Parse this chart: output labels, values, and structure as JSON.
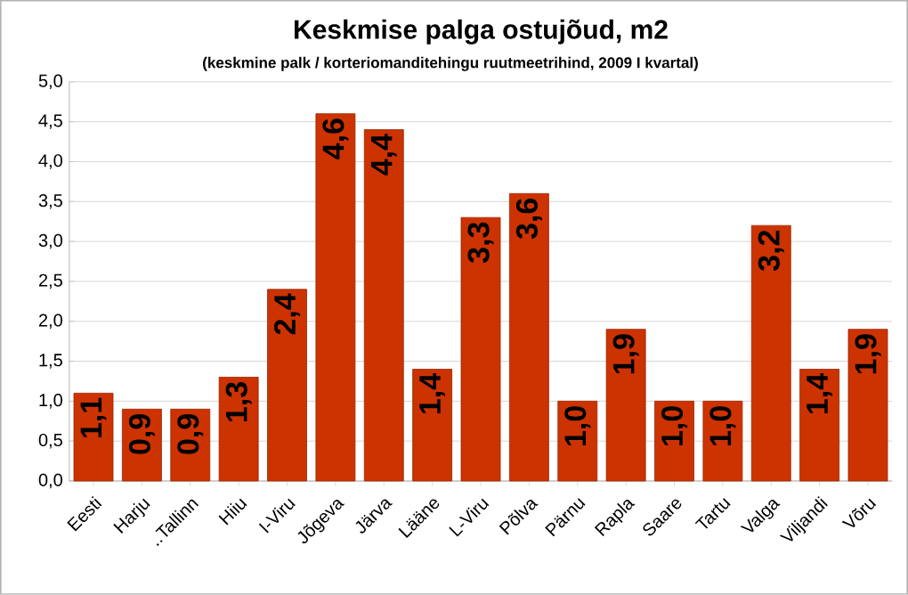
{
  "chart_data": {
    "type": "bar",
    "title": "Keskmise palga ostujõud, m2",
    "subtitle": "(keskmine palk / korteriomanditehingu ruutmeetrihind, 2009 I kvartal)",
    "categories": [
      "Eesti",
      "Harju",
      "..Tallinn",
      "Hiiu",
      "I-Viru",
      "Jõgeva",
      "Järva",
      "Lääne",
      "L-Viru",
      "Põlva",
      "Pärnu",
      "Rapla",
      "Saare",
      "Tartu",
      "Valga",
      "Viljandi",
      "Võru"
    ],
    "values": [
      1.1,
      0.9,
      0.9,
      1.3,
      2.4,
      4.6,
      4.4,
      1.4,
      3.3,
      3.6,
      1.0,
      1.9,
      1.0,
      1.0,
      3.2,
      1.4,
      1.9
    ],
    "value_labels": [
      "1,1",
      "0,9",
      "0,9",
      "1,3",
      "2,4",
      "4,6",
      "4,4",
      "1,4",
      "3,3",
      "3,6",
      "1,0",
      "1,9",
      "1,0",
      "1,0",
      "3,2",
      "1,4",
      "1,9"
    ],
    "color": "#cc3300",
    "ylim": [
      0,
      5
    ],
    "yticks": [
      {
        "value": 0,
        "label": "0,0"
      },
      {
        "value": 0.5,
        "label": "0,5"
      },
      {
        "value": 1,
        "label": "1,0"
      },
      {
        "value": 1.5,
        "label": "1,5"
      },
      {
        "value": 2,
        "label": "2,0"
      },
      {
        "value": 2.5,
        "label": "2,5"
      },
      {
        "value": 3,
        "label": "3,0"
      },
      {
        "value": 3.5,
        "label": "3,5"
      },
      {
        "value": 4,
        "label": "4,0"
      },
      {
        "value": 4.5,
        "label": "4,5"
      },
      {
        "value": 5,
        "label": "5,0"
      }
    ],
    "grid": "y"
  }
}
